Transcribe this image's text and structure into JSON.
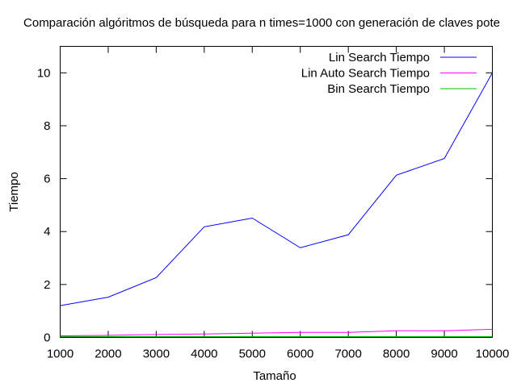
{
  "chart_data": {
    "type": "line",
    "title": "Comparación algóritmos de búsqueda para n times=1000 con generación de claves pote",
    "xlabel": "Tamaño",
    "ylabel": "Tiempo",
    "xlim": [
      1000,
      10000
    ],
    "ylim": [
      0,
      11
    ],
    "x_ticks": [
      1000,
      2000,
      3000,
      4000,
      5000,
      6000,
      7000,
      8000,
      9000,
      10000
    ],
    "y_ticks": [
      0,
      2,
      4,
      6,
      8,
      10
    ],
    "grid": false,
    "legend_position": "top-right",
    "x": [
      1000,
      2000,
      3000,
      4000,
      5000,
      6000,
      7000,
      8000,
      9000,
      10000
    ],
    "series": [
      {
        "name": "Lin Search Tiempo",
        "color": "#0000ff",
        "values": [
          1.2,
          1.52,
          2.26,
          4.18,
          4.51,
          3.39,
          3.88,
          6.13,
          6.76,
          10.0
        ]
      },
      {
        "name": "Lin Auto Search Tiempo",
        "color": "#ff00ff",
        "values": [
          0.06,
          0.08,
          0.11,
          0.13,
          0.16,
          0.19,
          0.19,
          0.25,
          0.25,
          0.31
        ]
      },
      {
        "name": "Bin Search Tiempo",
        "color": "#00c000",
        "values": [
          0.03,
          0.03,
          0.03,
          0.03,
          0.03,
          0.03,
          0.03,
          0.03,
          0.03,
          0.03
        ]
      }
    ]
  }
}
